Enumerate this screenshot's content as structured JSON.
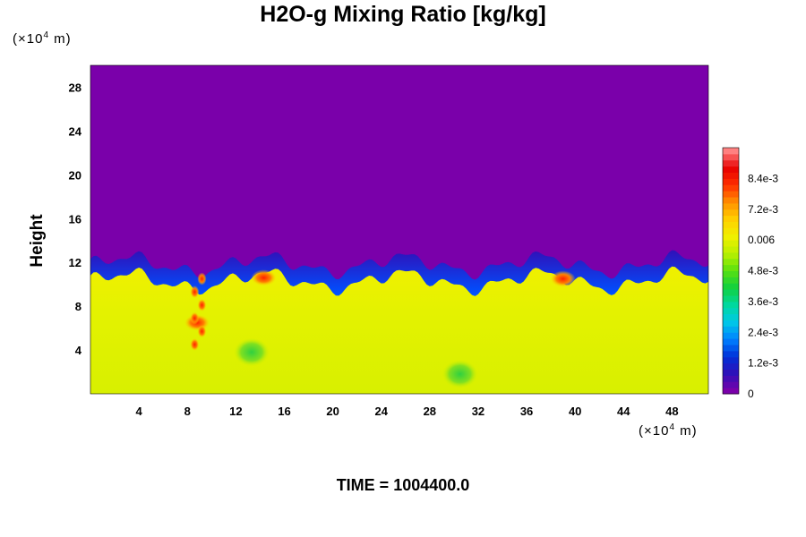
{
  "title": "H2O-g Mixing Ratio [kg/kg]",
  "y_unit": {
    "prefix": "(×10",
    "exp": "4",
    "suffix": " m)"
  },
  "x_unit": {
    "prefix": "(×10",
    "exp": "4",
    "suffix": " m)"
  },
  "time_label": "TIME = 1004400.0",
  "chart_data": {
    "type": "heatmap",
    "title": "H2O-g Mixing Ratio [kg/kg]",
    "xlabel": "",
    "ylabel": "Height",
    "xlim": [
      0,
      51
    ],
    "ylim": [
      0,
      30
    ],
    "xticks": [
      "4",
      "8",
      "12",
      "16",
      "20",
      "24",
      "28",
      "32",
      "36",
      "40",
      "44",
      "48"
    ],
    "xtick_values": [
      4,
      8,
      12,
      16,
      20,
      24,
      28,
      32,
      36,
      40,
      44,
      48
    ],
    "yticks": [
      "4",
      "8",
      "12",
      "16",
      "20",
      "24",
      "28"
    ],
    "ytick_values": [
      4,
      8,
      12,
      16,
      20,
      24,
      28
    ],
    "colorbar": {
      "range": [
        0,
        0.0096
      ],
      "tick_labels": [
        "0",
        "1.2e-3",
        "2.4e-3",
        "3.6e-3",
        "4.8e-3",
        "0.006",
        "7.2e-3",
        "8.4e-3"
      ],
      "tick_values": [
        0,
        0.0012,
        0.0024,
        0.0036,
        0.0048,
        0.006,
        0.0072,
        0.0084
      ],
      "colors": [
        "#7a00aa",
        "#3010b8",
        "#0030d8",
        "#0080ff",
        "#00c8e8",
        "#00d8a0",
        "#10d040",
        "#58e010",
        "#b8f000",
        "#f0f000",
        "#ffd000",
        "#ff9000",
        "#ff3000",
        "#e80000",
        "#ff8080"
      ]
    },
    "field_summary": {
      "dry_layer_value": 0,
      "moist_layer_value": 0.0065,
      "interface_height_range": [
        9.5,
        12.5
      ],
      "features": [
        {
          "name": "moist anomaly",
          "x": 8.8,
          "y": 6.5,
          "value": 0.0082
        },
        {
          "name": "moist anomaly",
          "x": 14.3,
          "y": 10.6,
          "value": 0.0082
        },
        {
          "name": "moist anomaly",
          "x": 39.0,
          "y": 10.5,
          "value": 0.0078
        },
        {
          "name": "dry eddy",
          "x": 13.3,
          "y": 3.8,
          "value": 0.005
        },
        {
          "name": "dry eddy",
          "x": 30.5,
          "y": 1.8,
          "value": 0.0048
        }
      ]
    }
  }
}
